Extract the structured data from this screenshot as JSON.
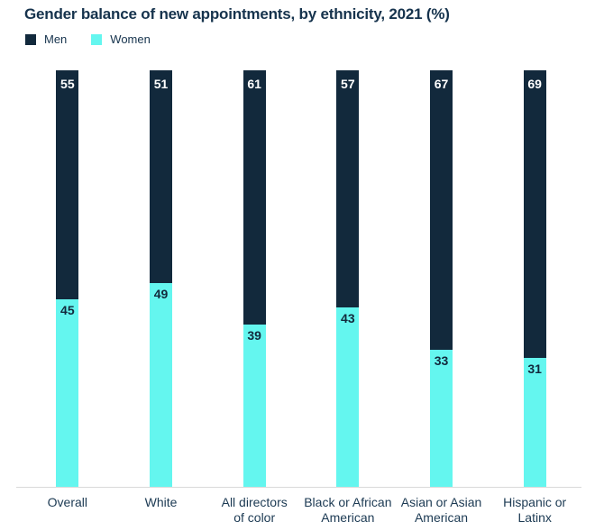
{
  "title": "Gender balance of new appointments, by ethnicity, 2021 (%)",
  "chart_data": {
    "type": "bar",
    "stacked": true,
    "title": "Gender balance of new appointments, by ethnicity, 2021 (%)",
    "categories": [
      "Overall",
      "White",
      "All directors\nof color",
      "Black or African\nAmerican",
      "Asian or Asian\nAmerican",
      "Hispanic or\nLatinx"
    ],
    "series": [
      {
        "name": "Men",
        "color": "#12293c",
        "label_color": "#ffffff",
        "values": [
          55,
          51,
          61,
          57,
          67,
          69
        ]
      },
      {
        "name": "Women",
        "color": "#64f6ef",
        "label_color": "#12293c",
        "values": [
          45,
          49,
          39,
          43,
          33,
          31
        ]
      }
    ],
    "value_labels": "inside-top-of-segment",
    "ylim": [
      0,
      100
    ],
    "grid": false,
    "legend_position": "top-left",
    "xlabel": "",
    "ylabel": ""
  }
}
